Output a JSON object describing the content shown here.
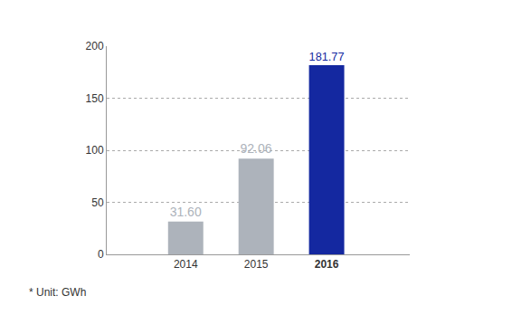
{
  "chart_data": {
    "type": "bar",
    "categories": [
      "2014",
      "2015",
      "2016"
    ],
    "values": [
      31.6,
      92.06,
      181.77
    ],
    "value_labels": [
      "31.60",
      "92.06",
      "181.77"
    ],
    "colors": [
      "#adb3bb",
      "#adb3bb",
      "#1428a0"
    ],
    "ylim": [
      0,
      200
    ],
    "yticks": [
      0,
      50,
      100,
      150,
      200
    ],
    "grid": true,
    "data_labels": true,
    "annotations": [
      "* Unit: GWh"
    ]
  }
}
